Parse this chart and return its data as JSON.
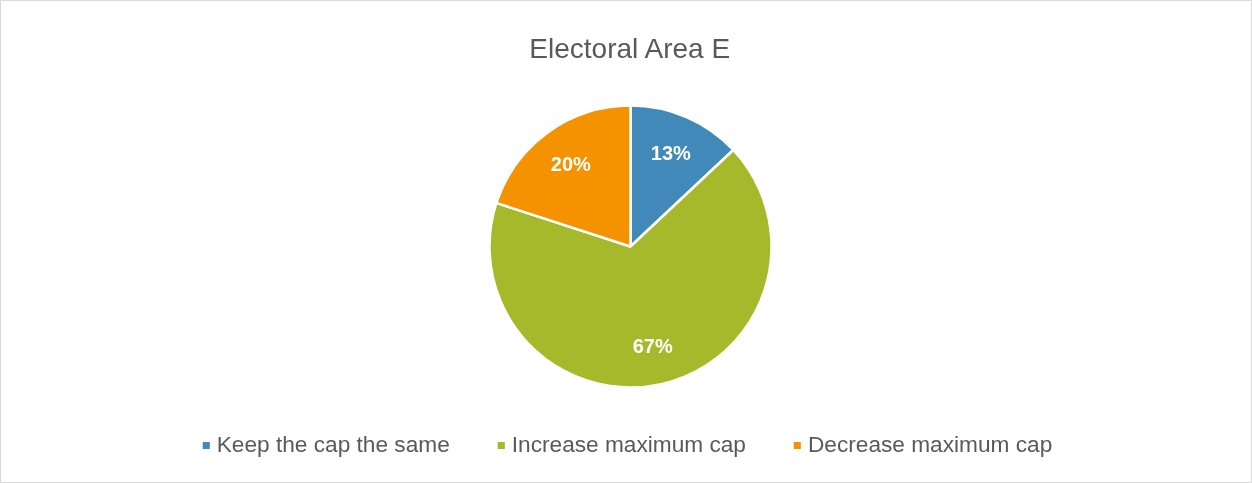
{
  "chart_data": {
    "type": "pie",
    "title": "Electoral Area E",
    "categories": [
      "Keep the cap the same",
      "Increase maximum cap",
      "Decrease maximum cap"
    ],
    "values": [
      13,
      67,
      20
    ],
    "colors": [
      "#4189b8",
      "#a6b92b",
      "#f59200"
    ],
    "value_labels": [
      "13%",
      "67%",
      "20%"
    ],
    "legend": "bottom"
  }
}
